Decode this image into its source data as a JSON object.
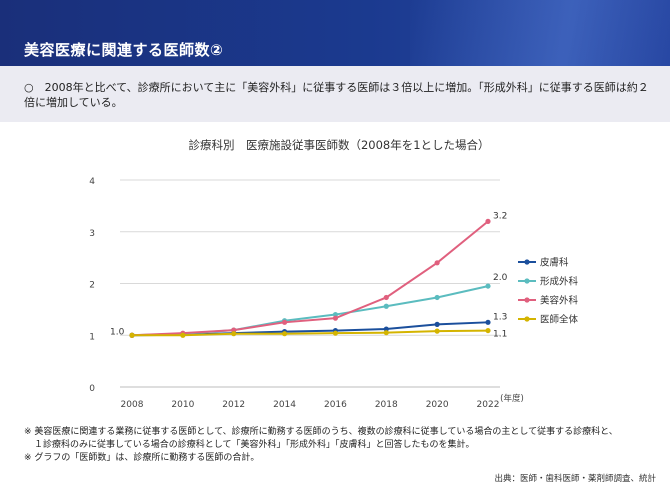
{
  "header": {
    "title": "美容医療に関連する医師数②"
  },
  "summary": {
    "text": "○　2008年と比べて、診療所において主に「美容外科」に従事する医師は３倍以上に増加。「形成外科」に従事する医師は約２倍に増加している。"
  },
  "chart_data": {
    "type": "line",
    "title": "診療科別　医療施設従事医師数（2008年を1とした場合）",
    "x": [
      2008,
      2010,
      2012,
      2014,
      2016,
      2018,
      2020,
      2022
    ],
    "xlabel": "(年度)",
    "ylim": [
      0,
      4
    ],
    "yticks": [
      0,
      1,
      2,
      3,
      4
    ],
    "grid": true,
    "legend_position": "right",
    "series": [
      {
        "name": "皮膚科",
        "color": "#1b4f9c",
        "values": [
          1.0,
          1.01,
          1.04,
          1.07,
          1.09,
          1.12,
          1.21,
          1.25
        ],
        "end_label": "1.3"
      },
      {
        "name": "形成外科",
        "color": "#5bbcbf",
        "values": [
          1.0,
          1.03,
          1.1,
          1.28,
          1.4,
          1.56,
          1.73,
          1.95
        ],
        "end_label": "2.0"
      },
      {
        "name": "美容外科",
        "color": "#e0607e",
        "values": [
          1.0,
          1.04,
          1.1,
          1.25,
          1.33,
          1.73,
          2.4,
          3.2
        ],
        "end_label": "3.2"
      },
      {
        "name": "医師全体",
        "color": "#d4b400",
        "values": [
          1.0,
          1.0,
          1.03,
          1.03,
          1.04,
          1.05,
          1.08,
          1.09
        ],
        "end_label": "1.1"
      }
    ],
    "start_label": "1.0"
  },
  "footnotes": [
    "※ 美容医療に関連する業務に従事する医師として、診療所に勤務する医師のうち、複数の診療科に従事している場合の主として従事する診療科と、",
    "１診療科のみに従事している場合の診療科として「美容外科」「形成外科」「皮膚科」と回答したものを集計。",
    "※ グラフの「医師数」は、診療所に勤務する医師の合計。"
  ],
  "source": "出典：医師・歯科医師・薬剤師調査、統計"
}
